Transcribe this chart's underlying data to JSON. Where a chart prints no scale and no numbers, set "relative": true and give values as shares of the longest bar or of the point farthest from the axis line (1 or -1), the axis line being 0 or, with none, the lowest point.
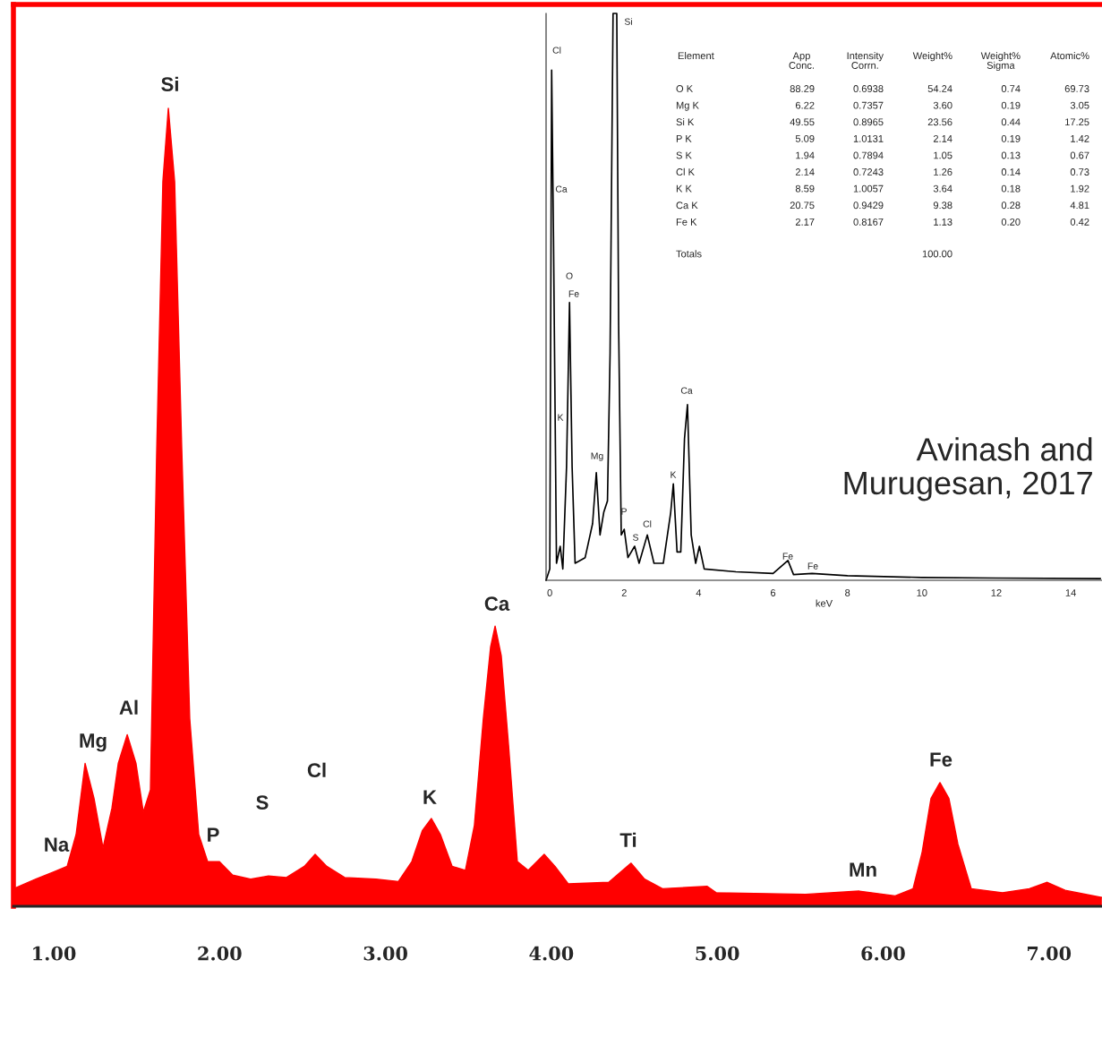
{
  "chart_data": [
    {
      "type": "area",
      "relative": true,
      "color": "#ff0000",
      "x": [
        0.757,
        0.892,
        1.0,
        1.081,
        1.135,
        1.189,
        1.243,
        1.297,
        1.351,
        1.389,
        1.443,
        1.496,
        1.54,
        1.583,
        1.621,
        1.658,
        1.691,
        1.729,
        1.772,
        1.82,
        1.874,
        1.928,
        1.998,
        2.079,
        2.187,
        2.295,
        2.403,
        2.511,
        2.576,
        2.646,
        2.754,
        2.943,
        3.078,
        3.159,
        3.223,
        3.277,
        3.331,
        3.402,
        3.482,
        3.536,
        3.59,
        3.634,
        3.661,
        3.698,
        3.742,
        3.795,
        3.86,
        3.957,
        4.022,
        4.103,
        4.346,
        4.481,
        4.562,
        4.67,
        4.94,
        4.994,
        5.533,
        5.857,
        6.073,
        6.181,
        6.235,
        6.289,
        6.343,
        6.397,
        6.451,
        6.532,
        6.72,
        6.882,
        6.99,
        7.098,
        7.319
      ],
      "values": [
        0.022,
        0.034,
        0.043,
        0.05,
        0.09,
        0.179,
        0.135,
        0.073,
        0.123,
        0.179,
        0.215,
        0.179,
        0.118,
        0.146,
        0.572,
        0.908,
        1.0,
        0.908,
        0.572,
        0.235,
        0.09,
        0.056,
        0.056,
        0.039,
        0.034,
        0.038,
        0.036,
        0.05,
        0.065,
        0.05,
        0.036,
        0.034,
        0.031,
        0.056,
        0.095,
        0.11,
        0.09,
        0.05,
        0.045,
        0.101,
        0.235,
        0.325,
        0.351,
        0.314,
        0.202,
        0.056,
        0.045,
        0.065,
        0.05,
        0.028,
        0.03,
        0.054,
        0.034,
        0.022,
        0.025,
        0.017,
        0.015,
        0.019,
        0.013,
        0.022,
        0.067,
        0.135,
        0.155,
        0.135,
        0.078,
        0.022,
        0.017,
        0.022,
        0.03,
        0.02,
        0.011
      ],
      "xlim": [
        0.757,
        7.32
      ],
      "xticks": [
        {
          "value": 1,
          "label": "1.00"
        },
        {
          "value": 2,
          "label": "2.00"
        },
        {
          "value": 3,
          "label": "3.00"
        },
        {
          "value": 4,
          "label": "4.00"
        },
        {
          "value": 5,
          "label": "5.00"
        },
        {
          "value": 6,
          "label": "6.00"
        },
        {
          "value": 7,
          "label": "7.00"
        }
      ],
      "annotations": [
        "Na",
        "Mg",
        "Al",
        "Si",
        "P",
        "S",
        "Cl",
        "K",
        "Ca",
        "Ti",
        "Mn",
        "Fe"
      ]
    },
    {
      "type": "line",
      "relative": true,
      "color": "#000000",
      "xlabel": "keV",
      "x": [
        -0.1,
        0.0,
        0.05,
        0.1,
        0.18,
        0.28,
        0.35,
        0.45,
        0.53,
        0.6,
        0.68,
        0.95,
        1.05,
        1.15,
        1.25,
        1.35,
        1.45,
        1.55,
        1.62,
        1.7,
        1.8,
        1.85,
        1.92,
        2.0,
        2.1,
        2.28,
        2.4,
        2.62,
        2.8,
        3.05,
        3.25,
        3.32,
        3.42,
        3.52,
        3.62,
        3.7,
        3.8,
        3.92,
        4.02,
        4.15,
        5.0,
        6.0,
        6.4,
        6.55,
        7.05,
        8.0,
        10.0,
        12.0,
        14.8
      ],
      "values": [
        0,
        0.02,
        0.9,
        0.6,
        0.03,
        0.06,
        0.02,
        0.2,
        0.49,
        0.2,
        0.03,
        0.04,
        0.07,
        0.1,
        0.19,
        0.08,
        0.12,
        0.14,
        0.4,
        1.0,
        1.0,
        0.45,
        0.08,
        0.09,
        0.04,
        0.06,
        0.03,
        0.08,
        0.03,
        0.03,
        0.12,
        0.17,
        0.05,
        0.05,
        0.25,
        0.31,
        0.08,
        0.03,
        0.06,
        0.02,
        0.015,
        0.012,
        0.035,
        0.01,
        0.012,
        0.008,
        0.005,
        0.004,
        0.003
      ],
      "xlim": [
        -0.1,
        14.84
      ],
      "xticks": [
        0,
        2,
        4,
        6,
        8,
        10,
        12,
        14
      ],
      "annotations": [
        "Cl",
        "Ca",
        "O",
        "Fe",
        "K",
        "Mg",
        "Si",
        "P",
        "S",
        "Cl",
        "K",
        "Ca",
        "Fe",
        "Fe",
        "Avinash and\nMurugesan, 2017"
      ]
    },
    {
      "type": "other",
      "categories": [
        "Element",
        "App\nConc.",
        "Intensity\nCorrn.",
        "Weight%",
        "Weight%\nSigma",
        "Atomic%"
      ],
      "y_categories": [
        "O K",
        "Mg K",
        "Si K",
        "P K",
        "S K",
        "Cl K",
        "K K",
        "Ca K",
        "Fe K",
        "Totals"
      ],
      "cell_labels": [
        [
          "88.29",
          "0.6938",
          "54.24",
          "0.74",
          "69.73"
        ],
        [
          "6.22",
          "0.7357",
          "3.60",
          "0.19",
          "3.05"
        ],
        [
          "49.55",
          "0.8965",
          "23.56",
          "0.44",
          "17.25"
        ],
        [
          "5.09",
          "1.0131",
          "2.14",
          "0.19",
          "1.42"
        ],
        [
          "1.94",
          "0.7894",
          "1.05",
          "0.13",
          "0.67"
        ],
        [
          "2.14",
          "0.7243",
          "1.26",
          "0.14",
          "0.73"
        ],
        [
          "8.59",
          "1.0057",
          "3.64",
          "0.18",
          "1.92"
        ],
        [
          "20.75",
          "0.9429",
          "9.38",
          "0.28",
          "4.81"
        ],
        [
          "2.17",
          "0.8167",
          "1.13",
          "0.20",
          "0.42"
        ],
        [
          null,
          null,
          "100.00",
          null,
          null
        ]
      ]
    }
  ]
}
